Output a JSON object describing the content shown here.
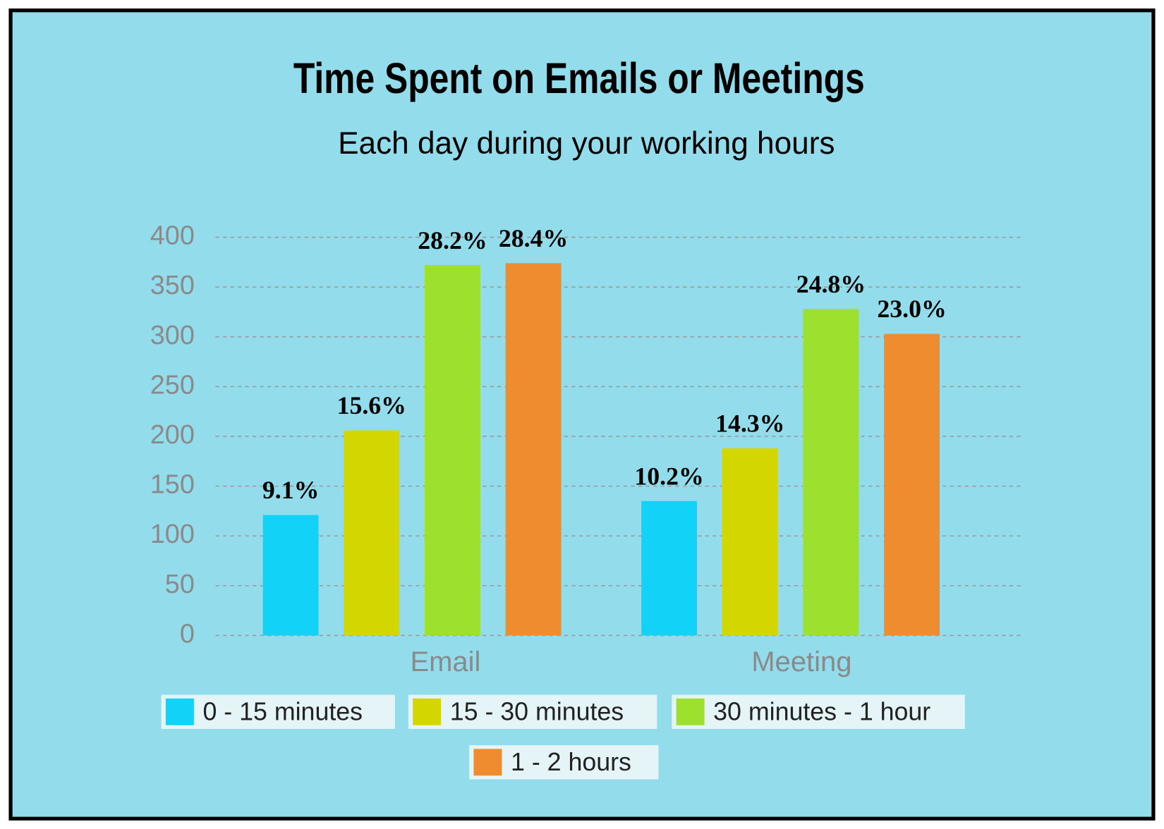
{
  "chart_data": {
    "type": "bar",
    "title": "Time Spent on Emails or Meetings",
    "subtitle": "Each day during your working hours",
    "categories": [
      "Email",
      "Meeting"
    ],
    "series": [
      {
        "name": "0 - 15 minutes",
        "color": "#12d3f7",
        "values": [
          121,
          135
        ],
        "labels": [
          "9.1%",
          "10.2%"
        ]
      },
      {
        "name": "15 - 30 minutes",
        "color": "#d4d600",
        "values": [
          206,
          188
        ],
        "labels": [
          "15.6%",
          "14.3%"
        ]
      },
      {
        "name": "30 minutes - 1 hour",
        "color": "#9ee02e",
        "values": [
          372,
          328
        ],
        "labels": [
          "28.2%",
          "24.8%"
        ]
      },
      {
        "name": "1 - 2 hours",
        "color": "#ef8c30",
        "values": [
          374,
          303
        ],
        "labels": [
          "28.4%",
          "23.0%"
        ]
      }
    ],
    "ylim": [
      0,
      400
    ],
    "yticks": [
      0,
      50,
      100,
      150,
      200,
      250,
      300,
      350,
      400
    ],
    "grid": true
  }
}
